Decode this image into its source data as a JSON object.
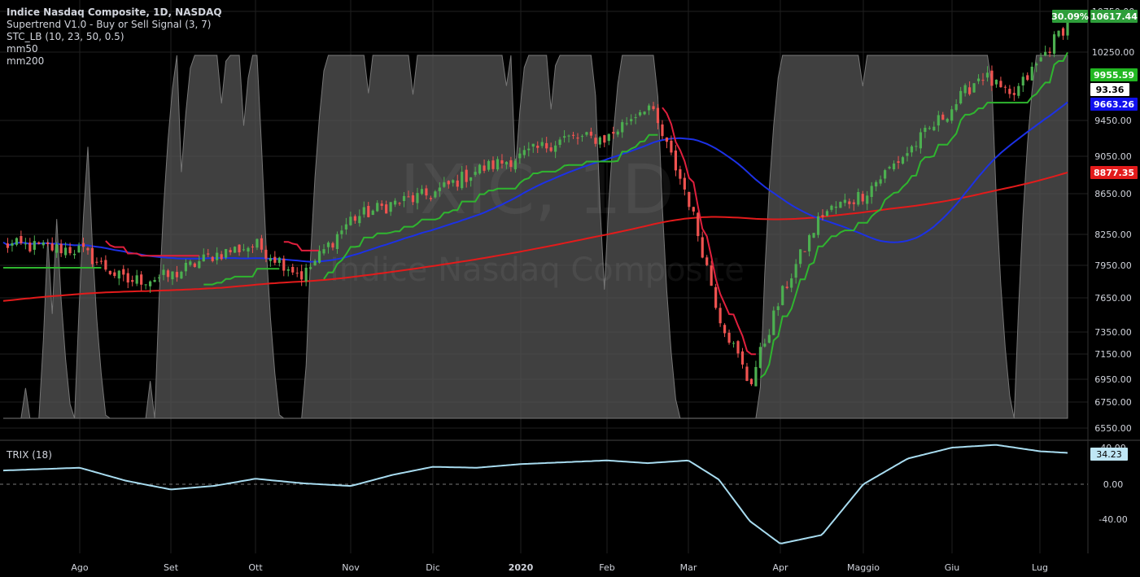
{
  "header": {
    "title": "Indice Nasdaq Composite, 1D, NASDAQ",
    "indicators": [
      "Supertrend V1.0 - Buy or Sell Signal (3, 7)",
      "STC_LB (10, 23, 50, 0.5)",
      "mm50",
      "mm200"
    ],
    "watermark_ticker": "IXIC, 1D",
    "watermark_name": "Indice Nasdaq Composite"
  },
  "trix": {
    "label": "TRIX (18)"
  },
  "colors": {
    "background": "#000000",
    "grid": "#1f1f1f",
    "text": "#d1d4dc",
    "candle_up": "#4caf50",
    "candle_down": "#ef5350",
    "supertrend_up": "#2fb52f",
    "supertrend_down": "#e01f3d",
    "mm50": "#1c31e6",
    "mm200": "#e31b1b",
    "stc_fill": "#555555",
    "trix_line": "#a8dcf0"
  },
  "chart_data": [
    {
      "type": "candlestick",
      "title": "Indice Nasdaq Composite, 1D, NASDAQ",
      "y_axis_ticks": [
        10750.0,
        10250.0,
        9450.0,
        9050.0,
        8650.0,
        8250.0,
        7950.0,
        7650.0,
        7350.0,
        7150.0,
        6950.0,
        6750.0,
        6550.0
      ],
      "x_axis_labels": [
        "Ago",
        "Set",
        "Ott",
        "Nov",
        "Dic",
        "2020",
        "Feb",
        "Mar",
        "Apr",
        "Maggio",
        "Giu",
        "Lug"
      ],
      "price_labels": [
        {
          "name": "change",
          "text": "30.09%"
        },
        {
          "name": "last",
          "text": "10617.44"
        },
        {
          "name": "supertrend",
          "text": "9955.59"
        },
        {
          "name": "stc",
          "text": "93.36"
        },
        {
          "name": "mm50",
          "text": "9663.26"
        },
        {
          "name": "mm200",
          "text": "8877.35"
        }
      ],
      "close_path": [
        [
          "Lug",
          8150
        ],
        [
          "Ago",
          8100
        ],
        [
          "Ago",
          7800
        ],
        [
          "Set",
          7850
        ],
        [
          "Set",
          8050
        ],
        [
          "Ott",
          8150
        ],
        [
          "Ott",
          7850
        ],
        [
          "Nov",
          8400
        ],
        [
          "Nov",
          8550
        ],
        [
          "Dic",
          8650
        ],
        [
          "Dic",
          8900
        ],
        [
          "2020",
          9050
        ],
        [
          "2020",
          9250
        ],
        [
          "Feb",
          9250
        ],
        [
          "Feb",
          9650
        ],
        [
          "Mar",
          8600
        ],
        [
          "Mar",
          7500
        ],
        [
          "Mar",
          6900
        ],
        [
          "Apr",
          7650
        ],
        [
          "Apr",
          8450
        ],
        [
          "Maggio",
          8650
        ],
        [
          "Maggio",
          9100
        ],
        [
          "Giu",
          9600
        ],
        [
          "Giu",
          10000
        ],
        [
          "Giu",
          9700
        ],
        [
          "Lug",
          10150
        ],
        [
          "Lug",
          10617.44
        ]
      ],
      "series": [
        {
          "name": "mm50",
          "last": 9663.26
        },
        {
          "name": "mm200",
          "last": 8877.35
        },
        {
          "name": "Supertrend",
          "last": 9955.59
        },
        {
          "name": "STC_LB",
          "last": 93.36,
          "range": [
            0,
            100
          ]
        }
      ]
    },
    {
      "type": "line",
      "title": "TRIX (18)",
      "y_axis_ticks": [
        40.0,
        0.0,
        -40.0
      ],
      "last_value": "34.23",
      "path": [
        [
          "Lug",
          15
        ],
        [
          "Ago",
          18
        ],
        [
          "Ago",
          4
        ],
        [
          "Set",
          -6
        ],
        [
          "Set",
          -2
        ],
        [
          "Ott",
          6
        ],
        [
          "Ott",
          1
        ],
        [
          "Nov",
          -2
        ],
        [
          "Nov",
          10
        ],
        [
          "Dic",
          19
        ],
        [
          "Dic",
          18
        ],
        [
          "2020",
          22
        ],
        [
          "Feb",
          26
        ],
        [
          "Feb",
          23
        ],
        [
          "Mar",
          26
        ],
        [
          "Mar",
          5
        ],
        [
          "Mar",
          -42
        ],
        [
          "Apr",
          -68
        ],
        [
          "Apr",
          -58
        ],
        [
          "Maggio",
          0
        ],
        [
          "Maggio",
          28
        ],
        [
          "Giu",
          40
        ],
        [
          "Giu",
          43
        ],
        [
          "Lug",
          36
        ],
        [
          "Lug",
          34.23
        ]
      ]
    }
  ]
}
